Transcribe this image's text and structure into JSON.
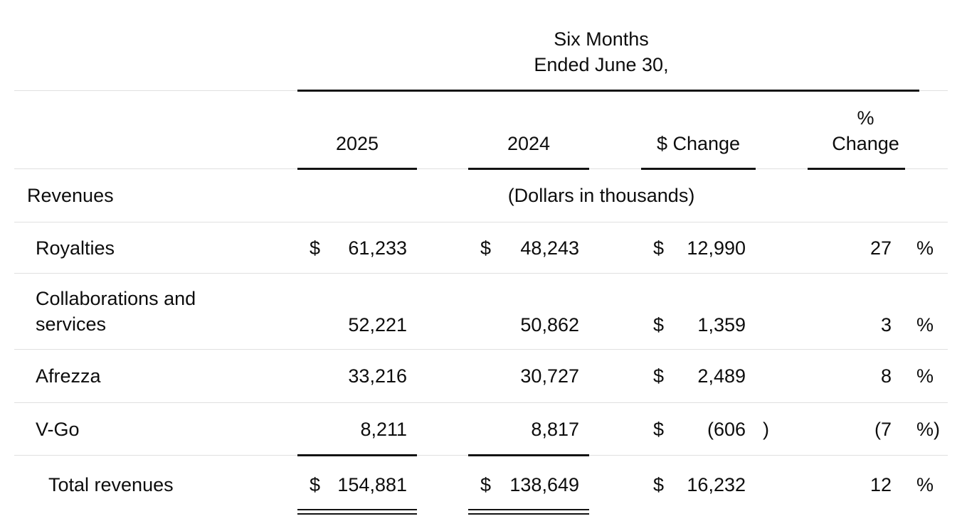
{
  "header": {
    "period_line1": "Six Months",
    "period_line2": "Ended June 30,",
    "col_2025": "2025",
    "col_2024": "2024",
    "col_dollar_change": "$ Change",
    "col_pct_change_line1": "%",
    "col_pct_change_line2": "Change"
  },
  "section": {
    "label": "Revenues",
    "note": "(Dollars in thousands)"
  },
  "rows": [
    {
      "label": "Royalties",
      "cur2025": "$",
      "val2025": "61,233",
      "cur2024": "$",
      "val2024": "48,243",
      "curChg": "$",
      "valChg": "12,990",
      "chgClose": "",
      "pct": "27",
      "pctSign": "%"
    },
    {
      "label": "Collaborations and services",
      "cur2025": "",
      "val2025": "52,221",
      "cur2024": "",
      "val2024": "50,862",
      "curChg": "$",
      "valChg": "1,359",
      "chgClose": "",
      "pct": "3",
      "pctSign": "%"
    },
    {
      "label": "Afrezza",
      "cur2025": "",
      "val2025": "33,216",
      "cur2024": "",
      "val2024": "30,727",
      "curChg": "$",
      "valChg": "2,489",
      "chgClose": "",
      "pct": "8",
      "pctSign": "%"
    },
    {
      "label": "V-Go",
      "cur2025": "",
      "val2025": "8,211",
      "cur2024": "",
      "val2024": "8,817",
      "curChg": "$",
      "valChg": "(606",
      "chgClose": ")",
      "pct": "(7",
      "pctSign": "%)"
    }
  ],
  "total": {
    "label": "Total revenues",
    "cur2025": "$",
    "val2025": "154,881",
    "cur2024": "$",
    "val2024": "138,649",
    "curChg": "$",
    "valChg": "16,232",
    "chgClose": "",
    "pct": "12",
    "pctSign": "%"
  }
}
